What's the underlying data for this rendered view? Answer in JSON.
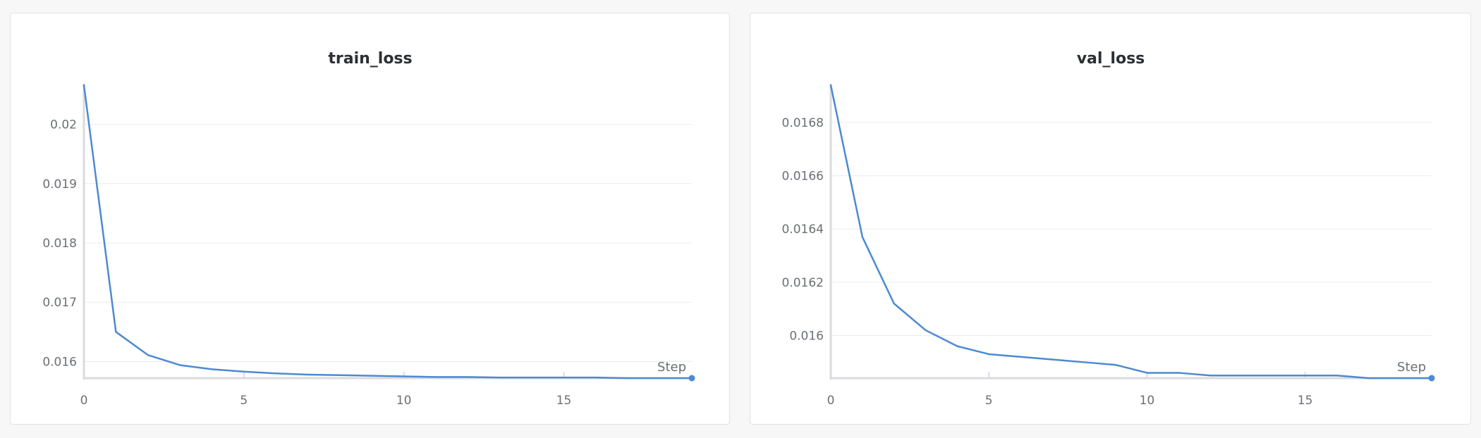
{
  "colors": {
    "series": "#4c8ad2"
  },
  "chart_data": [
    {
      "type": "line",
      "title": "train_loss",
      "xlabel": "Step",
      "ylabel": "",
      "x": [
        0,
        1,
        2,
        3,
        4,
        5,
        6,
        7,
        8,
        9,
        10,
        11,
        12,
        13,
        14,
        15,
        16,
        17,
        18,
        19
      ],
      "series": [
        {
          "values": [
            0.02066,
            0.0165,
            0.01611,
            0.01594,
            0.01587,
            0.01583,
            0.0158,
            0.01578,
            0.01577,
            0.01576,
            0.01575,
            0.01574,
            0.01574,
            0.01573,
            0.01573,
            0.01573,
            0.01573,
            0.01572,
            0.01572,
            0.01572
          ]
        }
      ],
      "xlim": [
        0,
        19
      ],
      "ylim": [
        0.01572,
        0.02066
      ],
      "xticks": [
        0,
        5,
        10,
        15
      ],
      "yticks": [
        0.016,
        0.017,
        0.018,
        0.019,
        0.02
      ],
      "xtick_labels": [
        "0",
        "5",
        "10",
        "15"
      ],
      "ytick_labels": [
        "0.016",
        "0.017",
        "0.018",
        "0.019",
        "0.02"
      ],
      "grid": true,
      "legend": "none"
    },
    {
      "type": "line",
      "title": "val_loss",
      "xlabel": "Step",
      "ylabel": "",
      "x": [
        0,
        1,
        2,
        3,
        4,
        5,
        6,
        7,
        8,
        9,
        10,
        11,
        12,
        13,
        14,
        15,
        16,
        17,
        18,
        19
      ],
      "series": [
        {
          "values": [
            0.01694,
            0.01637,
            0.01612,
            0.01602,
            0.01596,
            0.01593,
            0.01592,
            0.01591,
            0.0159,
            0.01589,
            0.01586,
            0.01586,
            0.01585,
            0.01585,
            0.01585,
            0.01585,
            0.01585,
            0.01584,
            0.01584,
            0.01584
          ]
        }
      ],
      "xlim": [
        0,
        19
      ],
      "ylim": [
        0.01584,
        0.01694
      ],
      "xticks": [
        0,
        5,
        10,
        15
      ],
      "yticks": [
        0.016,
        0.0162,
        0.0164,
        0.0166,
        0.0168
      ],
      "xtick_labels": [
        "0",
        "5",
        "10",
        "15"
      ],
      "ytick_labels": [
        "0.016",
        "0.0162",
        "0.0164",
        "0.0166",
        "0.0168"
      ],
      "grid": true,
      "legend": "none"
    }
  ]
}
